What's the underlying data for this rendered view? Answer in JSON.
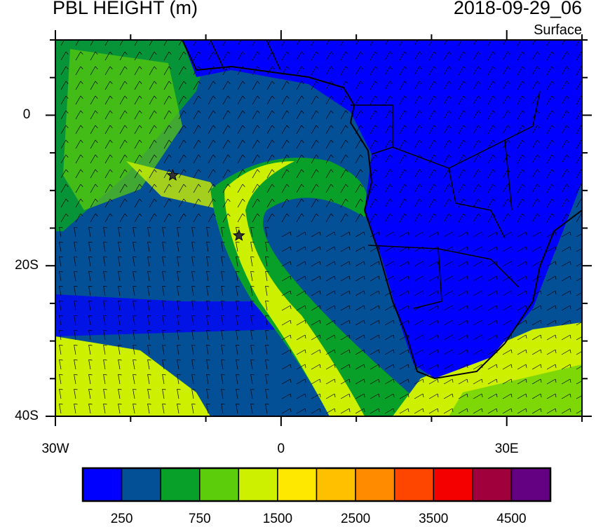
{
  "title": "PBL HEIGHT (m)",
  "date": "2018-09-29_06",
  "level": "Surface",
  "map": {
    "lon_range": [
      -30,
      40
    ],
    "lat_range": [
      -40,
      10
    ],
    "lon_labels": [
      {
        "lon": -30,
        "text": "30W"
      },
      {
        "lon": 0,
        "text": "0"
      },
      {
        "lon": 30,
        "text": "30E"
      }
    ],
    "lat_labels": [
      {
        "lat": 0,
        "text": "0"
      },
      {
        "lat": -20,
        "text": "20S"
      },
      {
        "lat": -40,
        "text": "40S"
      }
    ],
    "markers": [
      {
        "name": "star",
        "lon": -14.4,
        "lat": -8
      },
      {
        "name": "star",
        "lon": -5.6,
        "lat": -16
      }
    ]
  },
  "colorbar": {
    "colors": [
      "#0000ff",
      "#045096",
      "#08a028",
      "#5ccd0a",
      "#cdef00",
      "#ffe800",
      "#ffc000",
      "#ff8c00",
      "#ff4600",
      "#f50000",
      "#a0003c",
      "#640082"
    ],
    "labels": [
      "250",
      "750",
      "1500",
      "2500",
      "3500",
      "4500"
    ]
  }
}
